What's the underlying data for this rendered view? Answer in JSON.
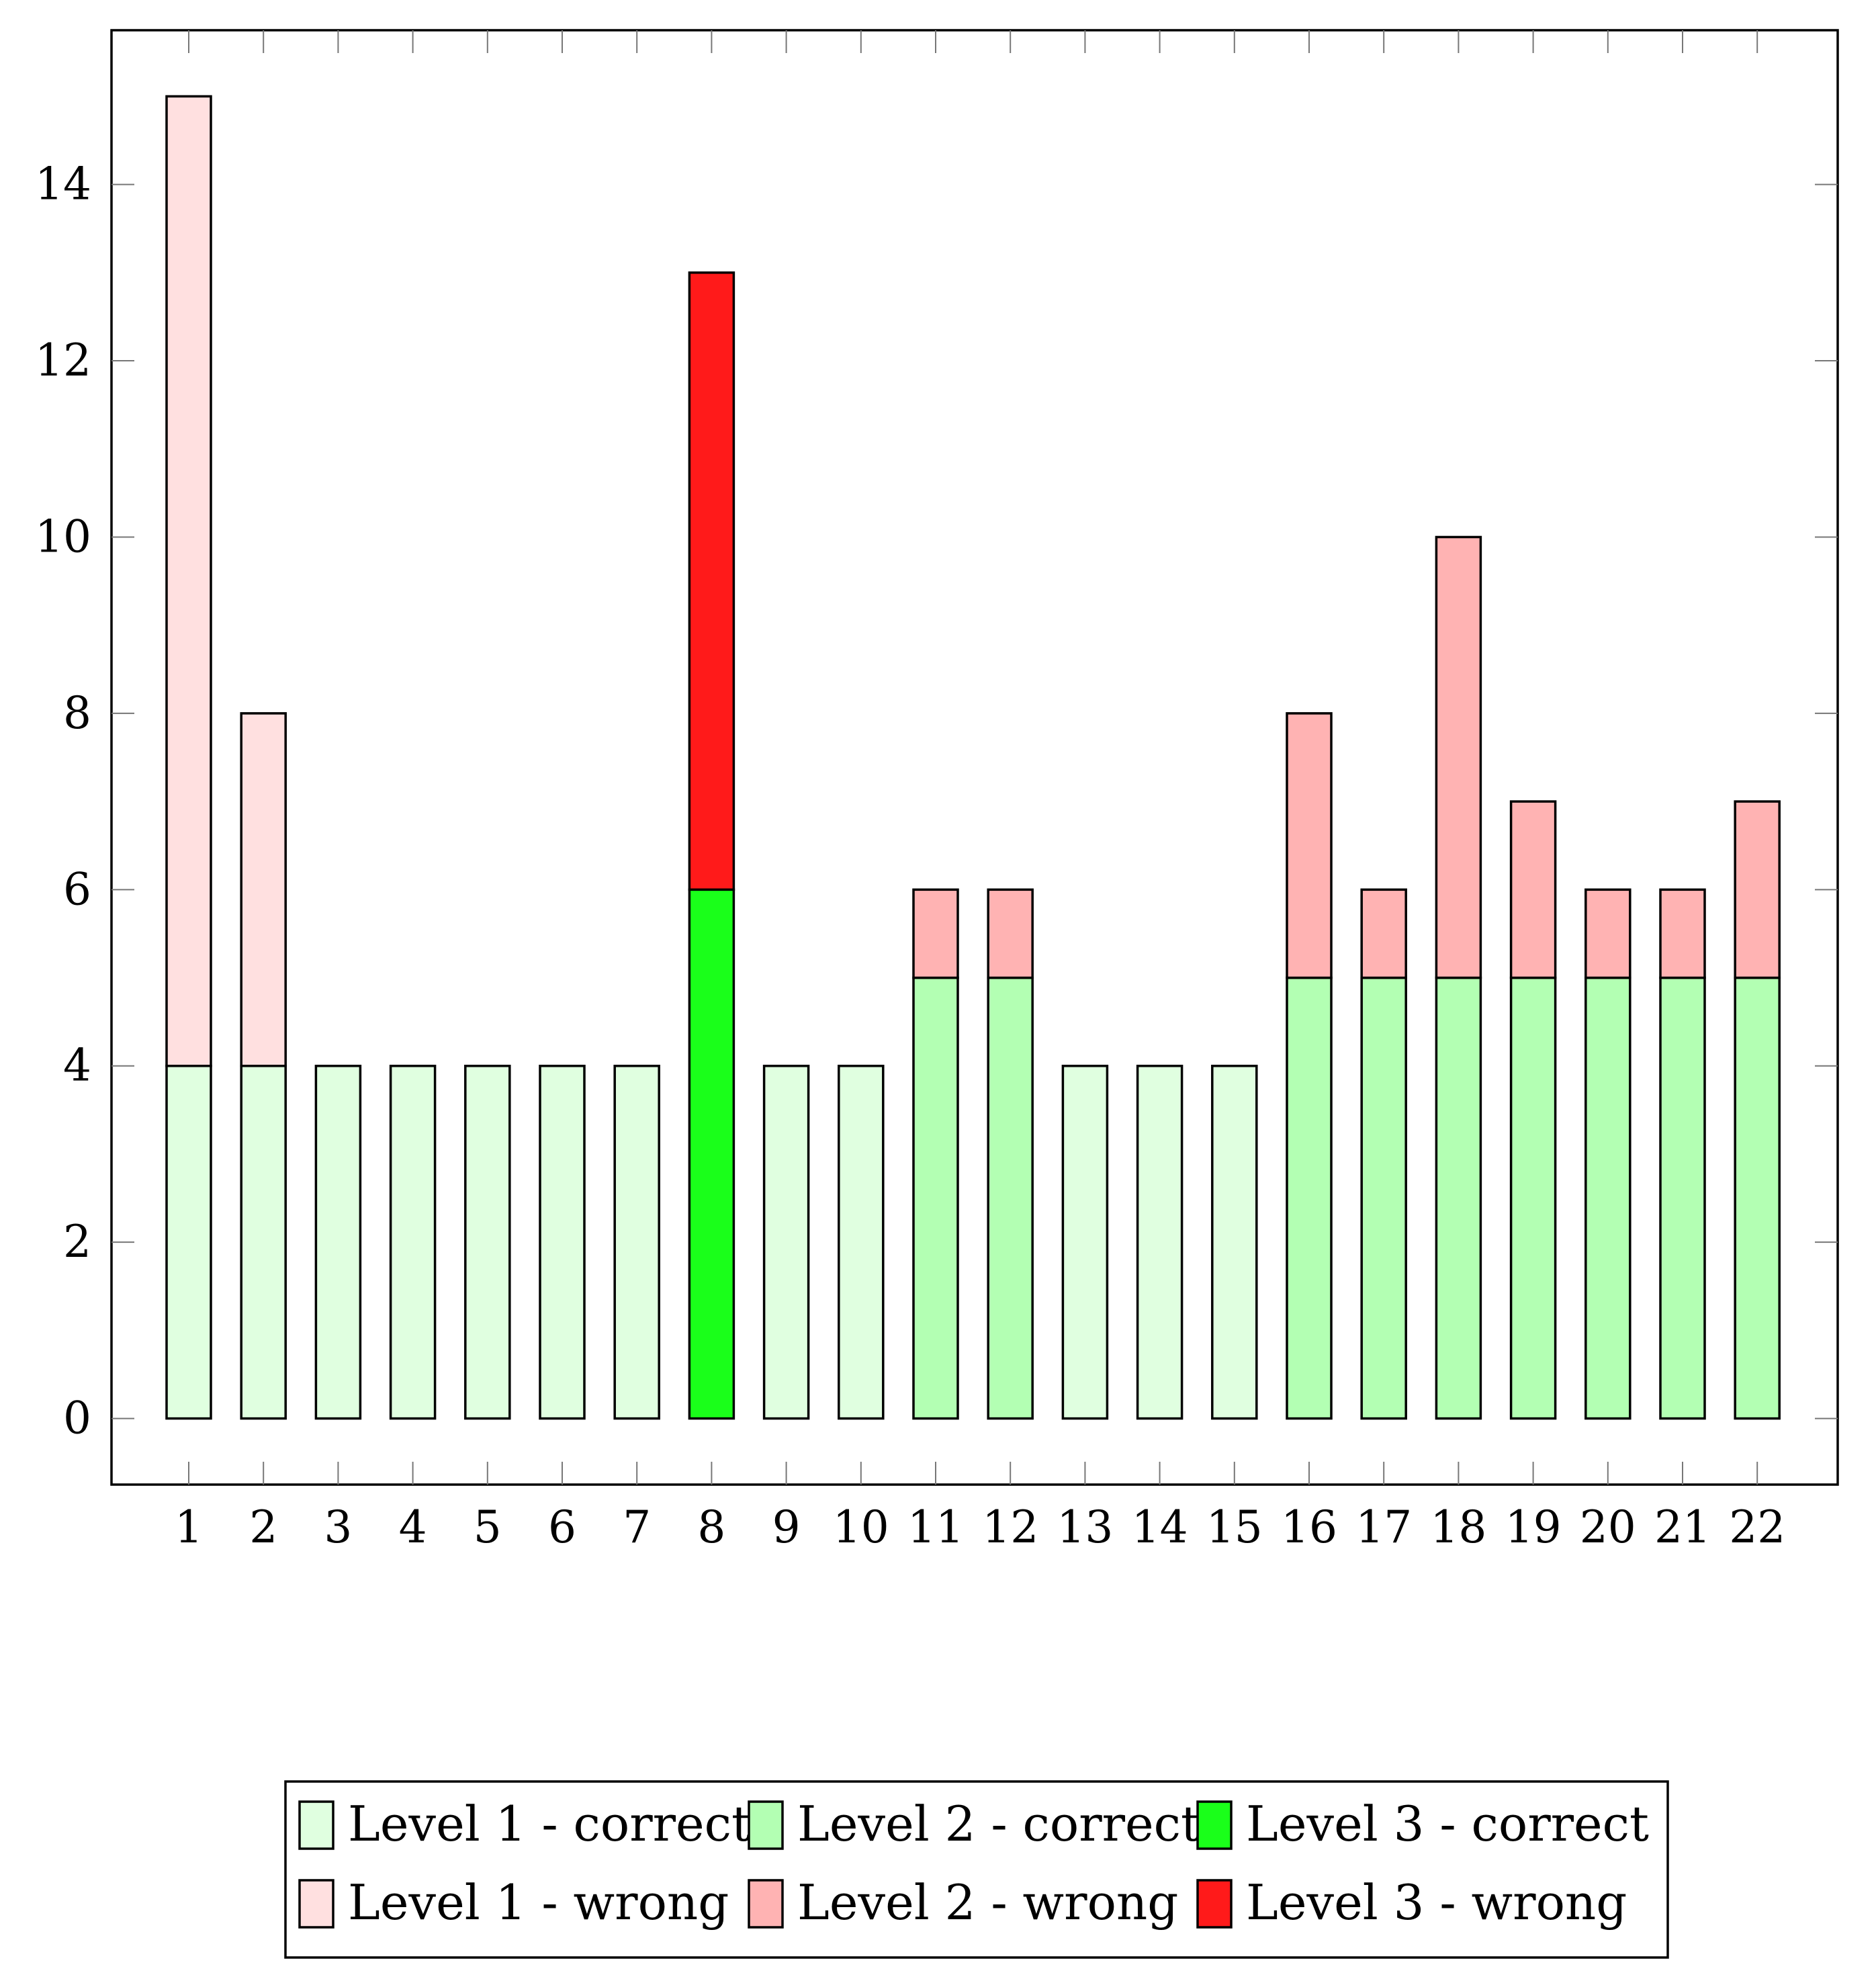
{
  "chart_data": {
    "type": "bar",
    "stacked": true,
    "title": "",
    "xlabel": "",
    "ylabel": "",
    "categories": [
      "1",
      "2",
      "3",
      "4",
      "5",
      "6",
      "7",
      "8",
      "9",
      "10",
      "11",
      "12",
      "13",
      "14",
      "15",
      "16",
      "17",
      "18",
      "19",
      "20",
      "21",
      "22"
    ],
    "ylim": [
      -0.75,
      15.75
    ],
    "yticks": [
      0,
      2,
      4,
      6,
      8,
      10,
      12,
      14
    ],
    "grid": false,
    "legend_position": "bottom-center",
    "series": [
      {
        "name": "Level 1 - correct",
        "color": "#e0ffe0",
        "values": [
          4,
          4,
          4,
          4,
          4,
          4,
          4,
          0,
          4,
          4,
          0,
          0,
          4,
          4,
          4,
          0,
          0,
          0,
          0,
          0,
          0,
          0
        ]
      },
      {
        "name": "Level 1 - wrong",
        "color": "#ffe0e0",
        "values": [
          11,
          4,
          0,
          0,
          0,
          0,
          0,
          0,
          0,
          0,
          0,
          0,
          0,
          0,
          0,
          0,
          0,
          0,
          0,
          0,
          0,
          0
        ]
      },
      {
        "name": "Level 2 - correct",
        "color": "#b3ffb3",
        "values": [
          0,
          0,
          0,
          0,
          0,
          0,
          0,
          0,
          0,
          0,
          5,
          5,
          0,
          0,
          0,
          5,
          5,
          5,
          5,
          5,
          5,
          5
        ]
      },
      {
        "name": "Level 2 - wrong",
        "color": "#ffb3b3",
        "values": [
          0,
          0,
          0,
          0,
          0,
          0,
          0,
          0,
          0,
          0,
          1,
          1,
          0,
          0,
          0,
          3,
          1,
          5,
          2,
          1,
          1,
          2
        ]
      },
      {
        "name": "Level 3 - correct",
        "color": "#1aff1a",
        "values": [
          0,
          0,
          0,
          0,
          0,
          0,
          0,
          6,
          0,
          0,
          0,
          0,
          0,
          0,
          0,
          0,
          0,
          0,
          0,
          0,
          0,
          0
        ]
      },
      {
        "name": "Level 3 - wrong",
        "color": "#ff1a1a",
        "values": [
          0,
          0,
          0,
          0,
          0,
          0,
          0,
          7,
          0,
          0,
          0,
          0,
          0,
          0,
          0,
          0,
          0,
          0,
          0,
          0,
          0,
          0
        ]
      }
    ],
    "legend_order": [
      "Level 1 - correct",
      "Level 2 - correct",
      "Level 3 - correct",
      "Level 1 - wrong",
      "Level 2 - wrong",
      "Level 3 - wrong"
    ]
  }
}
